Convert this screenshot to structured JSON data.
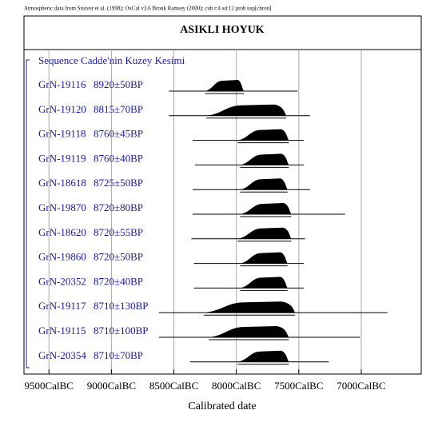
{
  "note_header": "Atmospheric data from Stuiver et al. (1998); OxCal v3.6 Bronk Ramsey (2000); cub r:4 sd:12 prob usp[chron]",
  "chart_data": {
    "type": "oxcal",
    "title": "ASIKLI HOYUK",
    "sequence": "Sequence Cadde'nin Kuzey Kesimi",
    "xlabel": "Calibrated date",
    "xlim": [
      9700,
      6520
    ],
    "xticks": [
      {
        "value": 9500,
        "label": "9500CalBC"
      },
      {
        "value": 9000,
        "label": "9000CalBC"
      },
      {
        "value": 8500,
        "label": "8500CalBC"
      },
      {
        "value": 8000,
        "label": "8000CalBC"
      },
      {
        "value": 7500,
        "label": "7500CalBC"
      },
      {
        "value": 7000,
        "label": "7000CalBC"
      }
    ],
    "grid": true,
    "color": "#000000",
    "label_color": "#1a1aa0",
    "rows": [
      {
        "name": "GrN-19116",
        "date": "8920±50BP",
        "range": [
          8540,
          7510
        ],
        "mass": [
          8250,
          7940
        ]
      },
      {
        "name": "GrN-19120",
        "date": "8815±70BP",
        "range": [
          8540,
          7410
        ],
        "mass": [
          8240,
          7600
        ]
      },
      {
        "name": "GrN-19118",
        "date": "8760±45BP",
        "range": [
          8350,
          7460
        ],
        "mass": [
          7990,
          7580
        ]
      },
      {
        "name": "GrN-19119",
        "date": "8760±40BP",
        "range": [
          8330,
          7460
        ],
        "mass": [
          7970,
          7580
        ]
      },
      {
        "name": "GrN-18618",
        "date": "8725±50BP",
        "range": [
          8350,
          7410
        ],
        "mass": [
          7970,
          7590
        ]
      },
      {
        "name": "GrN-19870",
        "date": "8720±80BP",
        "range": [
          8350,
          7130
        ],
        "mass": [
          7970,
          7560
        ]
      },
      {
        "name": "GrN-18620",
        "date": "8720±55BP",
        "range": [
          8360,
          7450
        ],
        "mass": [
          7990,
          7560
        ]
      },
      {
        "name": "GrN-19860",
        "date": "8720±50BP",
        "range": [
          8340,
          7460
        ],
        "mass": [
          7970,
          7590
        ]
      },
      {
        "name": "GrN-20352",
        "date": "8720±40BP",
        "range": [
          8340,
          7460
        ],
        "mass": [
          7970,
          7590
        ]
      },
      {
        "name": "GrN-19117",
        "date": "8710±130BP",
        "range": [
          8620,
          6790
        ],
        "mass": [
          8260,
          7530
        ]
      },
      {
        "name": "GrN-19115",
        "date": "8710±100BP",
        "range": [
          8620,
          7010
        ],
        "mass": [
          8220,
          7580
        ]
      },
      {
        "name": "GrN-20354",
        "date": "8710±70BP",
        "range": [
          8370,
          7260
        ],
        "mass": [
          7990,
          7580
        ]
      }
    ]
  }
}
